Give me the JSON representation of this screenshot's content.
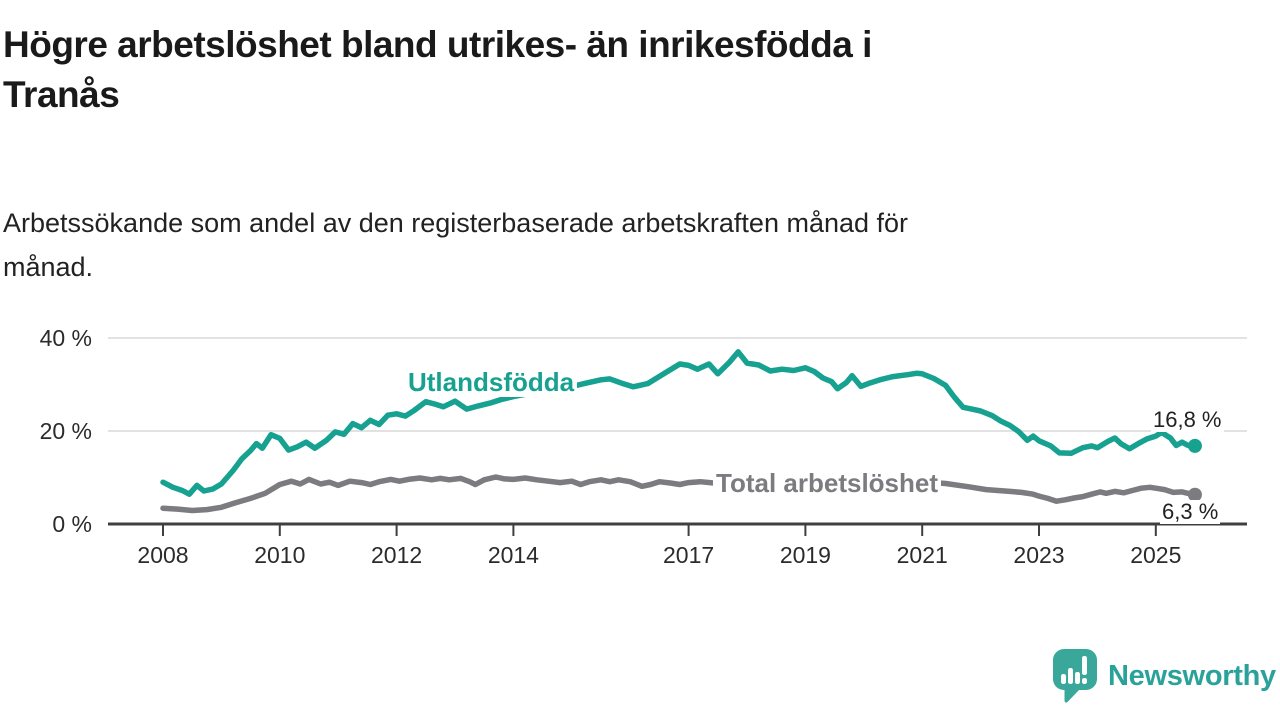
{
  "header": {
    "title_lines": [
      "Högre arbetslöshet bland utrikes- än inrikesfödda i",
      "Tranås"
    ],
    "subtitle_lines": [
      "Arbetssökande som andel av den registerbaserade arbetskraften månad för",
      "månad."
    ]
  },
  "branding": {
    "wordmark": "Newsworthy",
    "icon": "speech-bubble-bar-chart",
    "color": "#2aa29a",
    "icon_color": "#3aa79b"
  },
  "colors": {
    "background": "#ffffff",
    "grid": "#d8d8d8",
    "axis": "#3f3f3f",
    "text": "#2b2b2b",
    "series_foreign": "#17a191",
    "series_total": "#7b7b80"
  },
  "chart_data": {
    "type": "line",
    "unit": "%",
    "grid": "horizontal-only",
    "x_axis": {
      "range": [
        2007.05,
        2026.4
      ],
      "ticks": [
        {
          "value": 2008,
          "label": "2008"
        },
        {
          "value": 2010,
          "label": "2010"
        },
        {
          "value": 2012,
          "label": "2012"
        },
        {
          "value": 2014,
          "label": "2014"
        },
        {
          "value": 2017,
          "label": "2017"
        },
        {
          "value": 2019,
          "label": "2019"
        },
        {
          "value": 2021,
          "label": "2021"
        },
        {
          "value": 2023,
          "label": "2023"
        },
        {
          "value": 2025,
          "label": "2025"
        }
      ]
    },
    "y_axis": {
      "range": [
        0,
        40
      ],
      "ticks": [
        {
          "value": 0,
          "label": "0 %"
        },
        {
          "value": 20,
          "label": "20 %"
        },
        {
          "value": 40,
          "label": "40 %"
        }
      ]
    },
    "series": [
      {
        "name": "Utlandsfödda",
        "color": "#17a191",
        "end_value": 16.8,
        "end_label": "16,8 %",
        "points": [
          [
            2008.0,
            9.0
          ],
          [
            2008.17,
            7.9
          ],
          [
            2008.33,
            7.2
          ],
          [
            2008.45,
            6.4
          ],
          [
            2008.58,
            8.3
          ],
          [
            2008.7,
            7.1
          ],
          [
            2008.85,
            7.5
          ],
          [
            2009.0,
            8.6
          ],
          [
            2009.2,
            11.5
          ],
          [
            2009.35,
            14.0
          ],
          [
            2009.5,
            15.8
          ],
          [
            2009.6,
            17.3
          ],
          [
            2009.7,
            16.3
          ],
          [
            2009.85,
            19.2
          ],
          [
            2010.0,
            18.4
          ],
          [
            2010.15,
            15.9
          ],
          [
            2010.3,
            16.6
          ],
          [
            2010.45,
            17.6
          ],
          [
            2010.6,
            16.3
          ],
          [
            2010.8,
            18.0
          ],
          [
            2010.95,
            19.8
          ],
          [
            2011.1,
            19.3
          ],
          [
            2011.25,
            21.6
          ],
          [
            2011.4,
            20.7
          ],
          [
            2011.55,
            22.3
          ],
          [
            2011.7,
            21.4
          ],
          [
            2011.85,
            23.4
          ],
          [
            2012.0,
            23.7
          ],
          [
            2012.15,
            23.2
          ],
          [
            2012.3,
            24.4
          ],
          [
            2012.5,
            26.3
          ],
          [
            2012.65,
            25.8
          ],
          [
            2012.8,
            25.2
          ],
          [
            2013.0,
            26.4
          ],
          [
            2013.2,
            24.7
          ],
          [
            2013.4,
            25.4
          ],
          [
            2013.6,
            26.0
          ],
          [
            2013.8,
            26.8
          ],
          [
            2014.0,
            27.4
          ],
          [
            2014.25,
            28.0
          ],
          [
            2014.5,
            28.5
          ],
          [
            2014.75,
            29.0
          ],
          [
            2015.0,
            29.6
          ],
          [
            2015.25,
            30.3
          ],
          [
            2015.5,
            31.0
          ],
          [
            2015.65,
            31.2
          ],
          [
            2015.85,
            30.3
          ],
          [
            2016.05,
            29.5
          ],
          [
            2016.3,
            30.2
          ],
          [
            2016.6,
            32.5
          ],
          [
            2016.85,
            34.4
          ],
          [
            2017.0,
            34.1
          ],
          [
            2017.15,
            33.3
          ],
          [
            2017.35,
            34.4
          ],
          [
            2017.5,
            32.3
          ],
          [
            2017.7,
            34.8
          ],
          [
            2017.85,
            37.0
          ],
          [
            2018.0,
            34.6
          ],
          [
            2018.2,
            34.2
          ],
          [
            2018.4,
            32.9
          ],
          [
            2018.6,
            33.3
          ],
          [
            2018.8,
            33.0
          ],
          [
            2019.0,
            33.6
          ],
          [
            2019.15,
            32.8
          ],
          [
            2019.3,
            31.4
          ],
          [
            2019.45,
            30.6
          ],
          [
            2019.55,
            29.1
          ],
          [
            2019.7,
            30.4
          ],
          [
            2019.8,
            31.9
          ],
          [
            2019.95,
            29.6
          ],
          [
            2020.1,
            30.3
          ],
          [
            2020.3,
            31.1
          ],
          [
            2020.5,
            31.7
          ],
          [
            2020.75,
            32.1
          ],
          [
            2020.9,
            32.4
          ],
          [
            2021.0,
            32.3
          ],
          [
            2021.2,
            31.3
          ],
          [
            2021.4,
            29.8
          ],
          [
            2021.55,
            27.3
          ],
          [
            2021.7,
            25.1
          ],
          [
            2021.85,
            24.7
          ],
          [
            2022.0,
            24.3
          ],
          [
            2022.2,
            23.3
          ],
          [
            2022.35,
            22.1
          ],
          [
            2022.5,
            21.2
          ],
          [
            2022.65,
            19.9
          ],
          [
            2022.8,
            18.0
          ],
          [
            2022.9,
            18.9
          ],
          [
            2023.0,
            17.9
          ],
          [
            2023.2,
            16.8
          ],
          [
            2023.35,
            15.3
          ],
          [
            2023.55,
            15.2
          ],
          [
            2023.75,
            16.4
          ],
          [
            2023.9,
            16.8
          ],
          [
            2024.0,
            16.4
          ],
          [
            2024.2,
            17.9
          ],
          [
            2024.3,
            18.5
          ],
          [
            2024.4,
            17.3
          ],
          [
            2024.55,
            16.2
          ],
          [
            2024.7,
            17.3
          ],
          [
            2024.85,
            18.3
          ],
          [
            2025.0,
            18.9
          ],
          [
            2025.1,
            19.7
          ],
          [
            2025.25,
            18.5
          ],
          [
            2025.35,
            16.9
          ],
          [
            2025.45,
            17.6
          ],
          [
            2025.55,
            16.9
          ],
          [
            2025.67,
            16.8
          ]
        ]
      },
      {
        "name": "Total arbetslöshet",
        "color": "#7b7b80",
        "end_value": 6.3,
        "end_label": "6,3 %",
        "points": [
          [
            2008.0,
            3.4
          ],
          [
            2008.25,
            3.2
          ],
          [
            2008.5,
            2.9
          ],
          [
            2008.75,
            3.1
          ],
          [
            2009.0,
            3.6
          ],
          [
            2009.25,
            4.6
          ],
          [
            2009.5,
            5.5
          ],
          [
            2009.75,
            6.6
          ],
          [
            2010.0,
            8.5
          ],
          [
            2010.2,
            9.2
          ],
          [
            2010.35,
            8.6
          ],
          [
            2010.5,
            9.6
          ],
          [
            2010.7,
            8.6
          ],
          [
            2010.85,
            9.0
          ],
          [
            2011.0,
            8.3
          ],
          [
            2011.2,
            9.2
          ],
          [
            2011.4,
            8.9
          ],
          [
            2011.55,
            8.5
          ],
          [
            2011.7,
            9.1
          ],
          [
            2011.9,
            9.6
          ],
          [
            2012.05,
            9.2
          ],
          [
            2012.2,
            9.6
          ],
          [
            2012.4,
            9.9
          ],
          [
            2012.6,
            9.5
          ],
          [
            2012.75,
            9.8
          ],
          [
            2012.9,
            9.5
          ],
          [
            2013.1,
            9.8
          ],
          [
            2013.25,
            9.1
          ],
          [
            2013.35,
            8.5
          ],
          [
            2013.5,
            9.5
          ],
          [
            2013.7,
            10.1
          ],
          [
            2013.85,
            9.7
          ],
          [
            2014.0,
            9.6
          ],
          [
            2014.2,
            9.9
          ],
          [
            2014.4,
            9.5
          ],
          [
            2014.6,
            9.2
          ],
          [
            2014.8,
            8.9
          ],
          [
            2015.0,
            9.2
          ],
          [
            2015.15,
            8.5
          ],
          [
            2015.3,
            9.1
          ],
          [
            2015.5,
            9.5
          ],
          [
            2015.65,
            9.1
          ],
          [
            2015.8,
            9.5
          ],
          [
            2016.0,
            9.1
          ],
          [
            2016.2,
            8.1
          ],
          [
            2016.35,
            8.5
          ],
          [
            2016.5,
            9.1
          ],
          [
            2016.7,
            8.8
          ],
          [
            2016.85,
            8.5
          ],
          [
            2017.0,
            8.9
          ],
          [
            2017.2,
            9.1
          ],
          [
            2017.45,
            8.8
          ],
          [
            2017.7,
            8.6
          ],
          [
            2018.0,
            8.5
          ],
          [
            2018.3,
            8.3
          ],
          [
            2018.6,
            8.5
          ],
          [
            2019.0,
            8.6
          ],
          [
            2019.3,
            8.3
          ],
          [
            2019.6,
            8.5
          ],
          [
            2020.0,
            8.9
          ],
          [
            2020.3,
            9.6
          ],
          [
            2020.6,
            9.4
          ],
          [
            2021.0,
            9.1
          ],
          [
            2021.4,
            8.7
          ],
          [
            2021.8,
            8.0
          ],
          [
            2022.1,
            7.4
          ],
          [
            2022.3,
            7.2
          ],
          [
            2022.5,
            7.0
          ],
          [
            2022.7,
            6.8
          ],
          [
            2022.9,
            6.4
          ],
          [
            2023.0,
            6.0
          ],
          [
            2023.15,
            5.5
          ],
          [
            2023.3,
            4.9
          ],
          [
            2023.45,
            5.2
          ],
          [
            2023.6,
            5.6
          ],
          [
            2023.75,
            5.9
          ],
          [
            2023.9,
            6.4
          ],
          [
            2024.05,
            6.9
          ],
          [
            2024.15,
            6.6
          ],
          [
            2024.3,
            7.0
          ],
          [
            2024.45,
            6.7
          ],
          [
            2024.6,
            7.2
          ],
          [
            2024.75,
            7.7
          ],
          [
            2024.9,
            7.9
          ],
          [
            2025.0,
            7.7
          ],
          [
            2025.15,
            7.4
          ],
          [
            2025.3,
            6.8
          ],
          [
            2025.45,
            6.9
          ],
          [
            2025.55,
            6.6
          ],
          [
            2025.67,
            6.3
          ]
        ]
      }
    ]
  }
}
